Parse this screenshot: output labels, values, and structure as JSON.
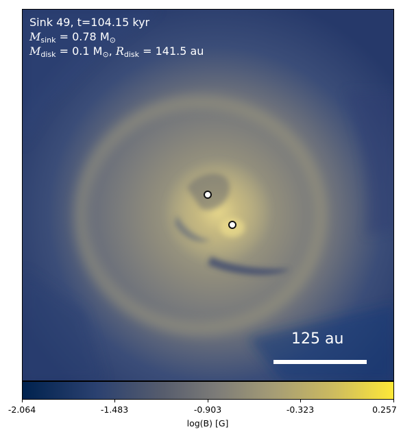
{
  "header": {
    "line1": "Sink 49, t=104.15 kyr",
    "msink_symbol": "M",
    "msink_sub": "sink",
    "msink_value": " = 0.78 M",
    "msink_unit_sub": "⊙",
    "mdisk_symbol": "M",
    "mdisk_sub": "disk",
    "mdisk_value": " = 0.1 M",
    "mdisk_unit_sub": "⊙",
    "rdisk_symbol": "R",
    "rdisk_sub": "disk",
    "rdisk_value": " = 141.5 au"
  },
  "scale_bar": {
    "label": "125 au"
  },
  "colorbar": {
    "label": "log(B) [G]",
    "ticks": [
      "-2.064",
      "-1.483",
      "-0.903",
      "-0.323",
      "0.257"
    ],
    "min": -2.064,
    "max": 0.257,
    "colormap": "cividis"
  },
  "colors": {
    "low": "#00224e",
    "mid": "#7c7b78",
    "high": "#fee838"
  }
}
